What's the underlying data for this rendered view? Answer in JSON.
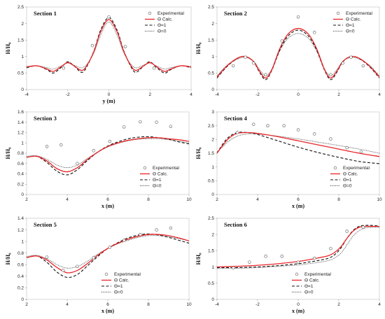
{
  "legend_labels": {
    "experimental": "Experimental",
    "calc": "Θ Calc.",
    "theta1": "Θ=1",
    "theta0": "Θ=0"
  },
  "series_colors": {
    "calc": "#e8262a",
    "theta1": "#111111",
    "theta0": "#333333",
    "experimental": "#555555"
  },
  "chart_data": [
    {
      "type": "line",
      "title": "Section 1",
      "xlabel": "y (m)",
      "ylabel": "H/H₀",
      "xlim": [
        -4,
        4
      ],
      "ylim": [
        0,
        2.5
      ],
      "xticks": [
        -4,
        -2,
        0,
        2,
        4
      ],
      "yticks": [
        0,
        0.5,
        1,
        1.5,
        2,
        2.5
      ],
      "ytick_labels": [
        "0",
        "0.5",
        "1",
        "1.5",
        "2",
        "2.5"
      ],
      "legend_position": "top-right",
      "experimental": {
        "x": [
          -2.2,
          -0.8,
          0,
          0.8,
          2.2
        ],
        "y": [
          0.65,
          1.33,
          2.2,
          1.3,
          0.65
        ]
      },
      "series": [
        {
          "name": "Θ Calc.",
          "key": "calc",
          "x": [
            -4,
            -3.5,
            -3,
            -2.7,
            -2.3,
            -2,
            -1.7,
            -1.3,
            -1,
            -0.7,
            -0.4,
            0,
            0.4,
            0.7,
            1,
            1.3,
            1.7,
            2,
            2.3,
            2.7,
            3,
            3.5,
            4
          ],
          "y": [
            0.68,
            0.72,
            0.62,
            0.55,
            0.7,
            0.82,
            0.72,
            0.58,
            0.8,
            1.2,
            1.75,
            2.12,
            1.75,
            1.2,
            0.8,
            0.58,
            0.72,
            0.82,
            0.7,
            0.55,
            0.62,
            0.72,
            0.68
          ]
        },
        {
          "name": "Θ=1",
          "key": "theta1",
          "x": [
            -4,
            -3.5,
            -3,
            -2.7,
            -2.3,
            -2,
            -1.7,
            -1.3,
            -1,
            -0.7,
            -0.4,
            0,
            0.4,
            0.7,
            1,
            1.3,
            1.7,
            2,
            2.3,
            2.7,
            3,
            3.5,
            4
          ],
          "y": [
            0.66,
            0.72,
            0.6,
            0.5,
            0.68,
            0.84,
            0.72,
            0.52,
            0.78,
            1.22,
            1.8,
            2.18,
            1.8,
            1.22,
            0.78,
            0.52,
            0.72,
            0.84,
            0.68,
            0.5,
            0.6,
            0.72,
            0.66
          ]
        },
        {
          "name": "Θ=0",
          "key": "theta0",
          "x": [
            -4,
            -3.5,
            -3,
            -2.7,
            -2.3,
            -2,
            -1.7,
            -1.3,
            -1,
            -0.7,
            -0.4,
            0,
            0.4,
            0.7,
            1,
            1.3,
            1.7,
            2,
            2.3,
            2.7,
            3,
            3.5,
            4
          ],
          "y": [
            0.7,
            0.72,
            0.66,
            0.62,
            0.72,
            0.8,
            0.74,
            0.66,
            0.82,
            1.15,
            1.65,
            2.05,
            1.65,
            1.15,
            0.82,
            0.66,
            0.74,
            0.8,
            0.72,
            0.62,
            0.66,
            0.72,
            0.7
          ]
        }
      ]
    },
    {
      "type": "line",
      "title": "Section 2",
      "xlabel": "",
      "ylabel": "H/H₀",
      "xlim": [
        -4,
        4
      ],
      "ylim": [
        0,
        2.5
      ],
      "xticks": [
        -4,
        -2,
        0,
        2,
        4
      ],
      "yticks": [
        0,
        0.5,
        1,
        1.5,
        2,
        2.5
      ],
      "ytick_labels": [
        "0",
        "0.5",
        "1",
        "1.5",
        "2",
        "2.5"
      ],
      "legend_position": "top-right",
      "experimental": {
        "x": [
          -3.2,
          -2.6,
          -2.2,
          -1.6,
          -0.8,
          0,
          0.8,
          1.6,
          2.2,
          2.6,
          3.2
        ],
        "y": [
          0.72,
          0.98,
          0.8,
          0.45,
          1.47,
          2.2,
          1.73,
          0.45,
          0.8,
          0.98,
          0.72
        ]
      },
      "series": [
        {
          "name": "Θ Calc.",
          "key": "calc",
          "x": [
            -4,
            -3.5,
            -3,
            -2.6,
            -2.2,
            -1.9,
            -1.6,
            -1.3,
            -0.9,
            -0.5,
            0,
            0.5,
            0.9,
            1.3,
            1.6,
            1.9,
            2.2,
            2.6,
            3,
            3.5,
            4
          ],
          "y": [
            0.38,
            0.72,
            0.95,
            1.0,
            0.85,
            0.55,
            0.35,
            0.6,
            1.25,
            1.68,
            1.85,
            1.68,
            1.25,
            0.6,
            0.35,
            0.55,
            0.85,
            1.0,
            0.95,
            0.72,
            0.38
          ]
        },
        {
          "name": "Θ=1",
          "key": "theta1",
          "x": [
            -4,
            -3.5,
            -3,
            -2.6,
            -2.2,
            -1.9,
            -1.6,
            -1.3,
            -0.9,
            -0.5,
            0,
            0.5,
            0.9,
            1.3,
            1.6,
            1.9,
            2.2,
            2.6,
            3,
            3.5,
            4
          ],
          "y": [
            0.35,
            0.7,
            0.94,
            1.0,
            0.84,
            0.52,
            0.3,
            0.58,
            1.2,
            1.62,
            1.8,
            1.62,
            1.2,
            0.58,
            0.3,
            0.52,
            0.84,
            1.0,
            0.94,
            0.7,
            0.35
          ]
        },
        {
          "name": "Θ=0",
          "key": "theta0",
          "x": [
            -4,
            -3.5,
            -3,
            -2.6,
            -2.2,
            -1.9,
            -1.6,
            -1.3,
            -0.9,
            -0.5,
            0,
            0.5,
            0.9,
            1.3,
            1.6,
            1.9,
            2.2,
            2.6,
            3,
            3.5,
            4
          ],
          "y": [
            0.42,
            0.74,
            0.92,
            0.97,
            0.86,
            0.6,
            0.42,
            0.62,
            1.18,
            1.55,
            1.7,
            1.55,
            1.18,
            0.62,
            0.42,
            0.6,
            0.86,
            0.97,
            0.92,
            0.74,
            0.42
          ]
        }
      ]
    },
    {
      "type": "line",
      "title": "Section 3",
      "xlabel": "x (m)",
      "ylabel": "H/H₀",
      "xlim": [
        2,
        10
      ],
      "ylim": [
        0,
        1.6
      ],
      "xticks": [
        2,
        4,
        6,
        8,
        10
      ],
      "yticks": [
        0,
        0.2,
        0.4,
        0.6,
        0.8,
        1,
        1.2,
        1.4,
        1.6
      ],
      "ytick_labels": [
        "0",
        "0.2",
        "0.4",
        "0.6",
        "0.8",
        "1",
        "1.2",
        "1.4",
        "1.6"
      ],
      "legend_position": "bottom-right",
      "experimental": {
        "x": [
          3.0,
          3.7,
          4.5,
          5.3,
          6.1,
          6.8,
          7.6,
          8.4,
          9.1
        ],
        "y": [
          0.93,
          0.96,
          0.6,
          0.85,
          1.03,
          1.31,
          1.41,
          1.4,
          1.32
        ]
      },
      "series": [
        {
          "name": "Θ Calc.",
          "key": "calc",
          "x": [
            2,
            2.5,
            3,
            3.5,
            4,
            4.5,
            5,
            5.5,
            6,
            6.5,
            7,
            7.5,
            8,
            8.5,
            9,
            9.5,
            10
          ],
          "y": [
            0.72,
            0.74,
            0.65,
            0.5,
            0.44,
            0.52,
            0.68,
            0.82,
            0.93,
            1.0,
            1.05,
            1.08,
            1.1,
            1.1,
            1.08,
            1.06,
            1.03
          ]
        },
        {
          "name": "Θ=1",
          "key": "theta1",
          "x": [
            2,
            2.5,
            3,
            3.5,
            4,
            4.5,
            5,
            5.5,
            6,
            6.5,
            7,
            7.5,
            8,
            8.5,
            9,
            9.5,
            10
          ],
          "y": [
            0.72,
            0.74,
            0.62,
            0.45,
            0.38,
            0.48,
            0.66,
            0.82,
            0.94,
            1.02,
            1.08,
            1.11,
            1.12,
            1.1,
            1.07,
            1.02,
            0.98
          ]
        },
        {
          "name": "Θ=0",
          "key": "theta0",
          "x": [
            2,
            2.5,
            3,
            3.5,
            4,
            4.5,
            5,
            5.5,
            6,
            6.5,
            7,
            7.5,
            8,
            8.5,
            9,
            9.5,
            10
          ],
          "y": [
            0.74,
            0.75,
            0.68,
            0.57,
            0.52,
            0.57,
            0.7,
            0.82,
            0.92,
            0.99,
            1.04,
            1.07,
            1.08,
            1.08,
            1.06,
            1.03,
            1.0
          ]
        }
      ]
    },
    {
      "type": "line",
      "title": "Section 4",
      "xlabel": "x (m)",
      "ylabel": "H/H₀",
      "xlim": [
        2,
        10
      ],
      "ylim": [
        0,
        3
      ],
      "xticks": [
        2,
        4,
        6,
        8,
        10
      ],
      "yticks": [
        0,
        0.5,
        1,
        1.5,
        2,
        2.5,
        3
      ],
      "ytick_labels": [
        "0",
        "0.5",
        "1",
        "1.5",
        "2",
        "2.5",
        "3"
      ],
      "legend_position": "bottom-right",
      "experimental": {
        "x": [
          3.0,
          3.8,
          4.5,
          5.3,
          6.0,
          6.8,
          7.6,
          8.4,
          9.1
        ],
        "y": [
          2.25,
          2.55,
          2.5,
          2.5,
          2.35,
          2.2,
          2.02,
          1.7,
          1.55
        ]
      },
      "series": [
        {
          "name": "Θ Calc.",
          "key": "calc",
          "x": [
            2,
            2.3,
            2.6,
            3,
            3.5,
            4,
            5,
            6,
            7,
            8,
            9,
            10
          ],
          "y": [
            1.5,
            1.8,
            2.05,
            2.22,
            2.25,
            2.22,
            2.1,
            1.95,
            1.8,
            1.65,
            1.5,
            1.38
          ]
        },
        {
          "name": "Θ=1",
          "key": "theta1",
          "x": [
            2,
            2.3,
            2.6,
            3,
            3.5,
            4,
            5,
            6,
            7,
            8,
            9,
            10
          ],
          "y": [
            1.5,
            1.85,
            2.1,
            2.25,
            2.25,
            2.18,
            1.95,
            1.72,
            1.52,
            1.35,
            1.2,
            1.12
          ]
        },
        {
          "name": "Θ=0",
          "key": "theta0",
          "x": [
            2,
            2.3,
            2.6,
            3,
            3.5,
            4,
            5,
            6,
            7,
            8,
            9,
            10
          ],
          "y": [
            1.55,
            1.75,
            1.95,
            2.12,
            2.2,
            2.2,
            2.12,
            2.02,
            1.9,
            1.78,
            1.65,
            1.5
          ]
        }
      ]
    },
    {
      "type": "line",
      "title": "Section 5",
      "xlabel": "x (m)",
      "ylabel": "H/H₀",
      "xlim": [
        2,
        10
      ],
      "ylim": [
        0,
        1.4
      ],
      "xticks": [
        2,
        4,
        6,
        8,
        10
      ],
      "yticks": [
        0,
        0.2,
        0.4,
        0.6,
        0.8,
        1,
        1.2,
        1.4
      ],
      "ytick_labels": [
        "0",
        "0.2",
        "0.4",
        "0.6",
        "0.8",
        "1",
        "1.2",
        "1.4"
      ],
      "legend_position": "bottom-center",
      "experimental": {
        "x": [
          3.0,
          3.8,
          4.5,
          5.3,
          6.1,
          6.8,
          7.6,
          8.4,
          9.1
        ],
        "y": [
          0.73,
          0.5,
          0.57,
          0.72,
          0.9,
          1.02,
          1.12,
          1.2,
          1.23
        ]
      },
      "series": [
        {
          "name": "Θ Calc.",
          "key": "calc",
          "x": [
            2,
            2.5,
            3,
            3.5,
            4,
            4.5,
            5,
            5.5,
            6,
            6.5,
            7,
            7.5,
            8,
            8.5,
            9,
            9.5,
            10
          ],
          "y": [
            0.72,
            0.75,
            0.68,
            0.55,
            0.46,
            0.5,
            0.62,
            0.76,
            0.88,
            0.97,
            1.04,
            1.09,
            1.12,
            1.12,
            1.1,
            1.06,
            1.01
          ]
        },
        {
          "name": "Θ=1",
          "key": "theta1",
          "x": [
            2,
            2.5,
            3,
            3.5,
            4,
            4.5,
            5,
            5.5,
            6,
            6.5,
            7,
            7.5,
            8,
            8.5,
            9,
            9.5,
            10
          ],
          "y": [
            0.72,
            0.75,
            0.64,
            0.47,
            0.38,
            0.43,
            0.58,
            0.74,
            0.88,
            0.98,
            1.06,
            1.11,
            1.13,
            1.11,
            1.07,
            1.02,
            0.97
          ]
        },
        {
          "name": "Θ=0",
          "key": "theta0",
          "x": [
            2,
            2.5,
            3,
            3.5,
            4,
            4.5,
            5,
            5.5,
            6,
            6.5,
            7,
            7.5,
            8,
            8.5,
            9,
            9.5,
            10
          ],
          "y": [
            0.74,
            0.76,
            0.7,
            0.6,
            0.54,
            0.57,
            0.66,
            0.78,
            0.88,
            0.96,
            1.02,
            1.07,
            1.1,
            1.1,
            1.08,
            1.05,
            1.01
          ]
        }
      ]
    },
    {
      "type": "line",
      "title": "Section 6",
      "xlabel": "x (m)",
      "ylabel": "H/H₀",
      "xlim": [
        -4,
        4
      ],
      "ylim": [
        0,
        2.5
      ],
      "xticks": [
        -4,
        -2,
        0,
        2,
        4
      ],
      "yticks": [
        0,
        0.5,
        1,
        1.5,
        2,
        2.5
      ],
      "ytick_labels": [
        "0",
        "0.5",
        "1",
        "1.5",
        "2",
        "2.5"
      ],
      "legend_position": "bottom-center",
      "experimental": {
        "x": [
          -3.2,
          -2.4,
          -1.6,
          -0.8,
          0,
          0.8,
          1.6,
          2.4,
          3.2
        ],
        "y": [
          0.97,
          1.15,
          1.33,
          1.33,
          1.15,
          1.27,
          1.57,
          2.1,
          2.23
        ]
      },
      "series": [
        {
          "name": "Θ Calc.",
          "key": "calc",
          "x": [
            -4,
            -3,
            -2,
            -1,
            0,
            0.5,
            1,
            1.5,
            1.8,
            2.1,
            2.4,
            2.7,
            3,
            3.3,
            3.6,
            4
          ],
          "y": [
            1.0,
            1.02,
            1.05,
            1.1,
            1.17,
            1.22,
            1.28,
            1.35,
            1.45,
            1.62,
            1.88,
            2.1,
            2.22,
            2.25,
            2.25,
            2.25
          ]
        },
        {
          "name": "Θ=1",
          "key": "theta1",
          "x": [
            -4,
            -3,
            -2,
            -1,
            0,
            0.5,
            1,
            1.5,
            1.8,
            2.1,
            2.4,
            2.7,
            3,
            3.3,
            3.6,
            4
          ],
          "y": [
            0.98,
            0.98,
            1.0,
            1.04,
            1.1,
            1.15,
            1.2,
            1.27,
            1.38,
            1.58,
            1.88,
            2.12,
            2.25,
            2.28,
            2.28,
            2.26
          ]
        },
        {
          "name": "Θ=0",
          "key": "theta0",
          "x": [
            -4,
            -3,
            -2,
            -1,
            0,
            0.5,
            1,
            1.5,
            1.8,
            2.1,
            2.4,
            2.7,
            3,
            3.3,
            3.6,
            4
          ],
          "y": [
            0.95,
            0.96,
            0.98,
            1.02,
            1.06,
            1.1,
            1.14,
            1.2,
            1.28,
            1.42,
            1.68,
            1.95,
            2.12,
            2.2,
            2.22,
            2.22
          ]
        }
      ]
    }
  ]
}
